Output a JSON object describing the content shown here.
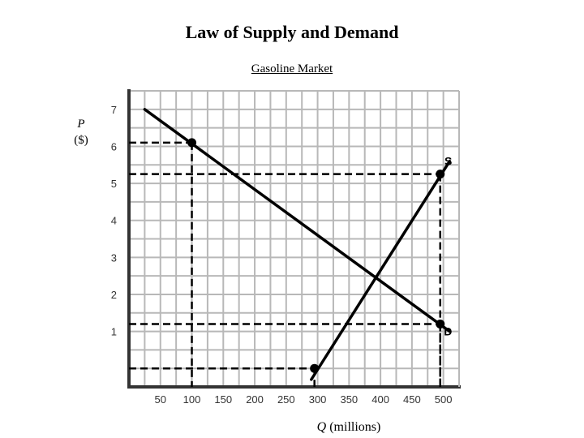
{
  "chart_data": {
    "type": "line",
    "title": "Law of Supply and Demand",
    "subtitle": "Gasoline Market",
    "ylabel_symbol": "P",
    "ylabel_unit": "($)",
    "xlabel_symbol": "Q",
    "xlabel_unit": " (millions)",
    "xlim": [
      0,
      525
    ],
    "ylim": [
      -0.5,
      7.5
    ],
    "x_ticks": [
      50,
      100,
      150,
      200,
      250,
      300,
      350,
      400,
      450,
      500
    ],
    "y_ticks": [
      1,
      2,
      3,
      4,
      5,
      6,
      7
    ],
    "grid": true,
    "series": [
      {
        "name": "D",
        "points": [
          [
            25,
            7.0
          ],
          [
            510,
            1.0
          ]
        ]
      },
      {
        "name": "S",
        "points": [
          [
            290,
            -0.3
          ],
          [
            510,
            5.6
          ]
        ]
      }
    ],
    "marked_points": [
      {
        "x": 100,
        "y": 6.1
      },
      {
        "x": 495,
        "y": 5.25
      },
      {
        "x": 495,
        "y": 1.2
      },
      {
        "x": 295,
        "y": 0.0
      }
    ],
    "colors": {
      "axis": "#333333",
      "grid": "#b8b8b8",
      "curve": "#000000"
    }
  }
}
